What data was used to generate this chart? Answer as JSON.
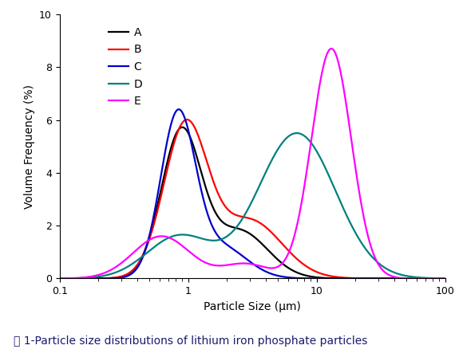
{
  "title": "",
  "xlabel": "Particle Size (μm)",
  "ylabel": "Volume Frequency (%)",
  "xlim": [
    0.1,
    100
  ],
  "ylim": [
    0,
    10
  ],
  "yticks": [
    0,
    2,
    4,
    6,
    8,
    10
  ],
  "caption": "圖 1-Particle size distributions of lithium iron phosphate particles",
  "curves": {
    "A": {
      "color": "#000000",
      "lw": 1.6
    },
    "B": {
      "color": "#ff0000",
      "lw": 1.6
    },
    "C": {
      "color": "#0000cc",
      "lw": 1.6
    },
    "D": {
      "color": "#008080",
      "lw": 1.6
    },
    "E": {
      "color": "#ff00ff",
      "lw": 1.6
    }
  },
  "legend_fontsize": 10,
  "axis_fontsize": 10,
  "tick_fontsize": 9,
  "figsize": [
    5.75,
    4.48
  ],
  "dpi": 100
}
